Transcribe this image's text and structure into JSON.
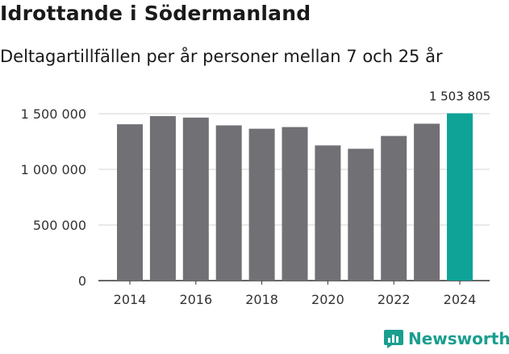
{
  "header": {
    "title": "Idrottande i Södermanland",
    "subtitle": "Deltagartillfällen per år personer mellan 7 och 25 år"
  },
  "chart_data": {
    "type": "bar",
    "title": "Idrottande i Södermanland",
    "subtitle": "Deltagartillfällen per år personer mellan 7 och 25 år",
    "categories": [
      2014,
      2015,
      2016,
      2017,
      2018,
      2019,
      2020,
      2021,
      2022,
      2023,
      2024
    ],
    "values": [
      1405000,
      1478000,
      1465000,
      1395000,
      1365000,
      1380000,
      1215000,
      1185000,
      1300000,
      1410000,
      1503805
    ],
    "x_tick_labels": [
      "2014",
      "2016",
      "2018",
      "2020",
      "2022",
      "2024"
    ],
    "y_ticks": [
      0,
      500000,
      1000000,
      1500000
    ],
    "y_tick_labels": [
      "0",
      "500 000",
      "1 000 000",
      "1 500 000"
    ],
    "ylim": [
      0,
      1500000
    ],
    "highlight_label": "1 503 805",
    "bar_color": "#717075",
    "highlight_color": "#0fa398",
    "grid": true,
    "xlabel": "",
    "ylabel": ""
  },
  "branding": {
    "name": "Newsworthy",
    "color": "#1a9e8f"
  }
}
